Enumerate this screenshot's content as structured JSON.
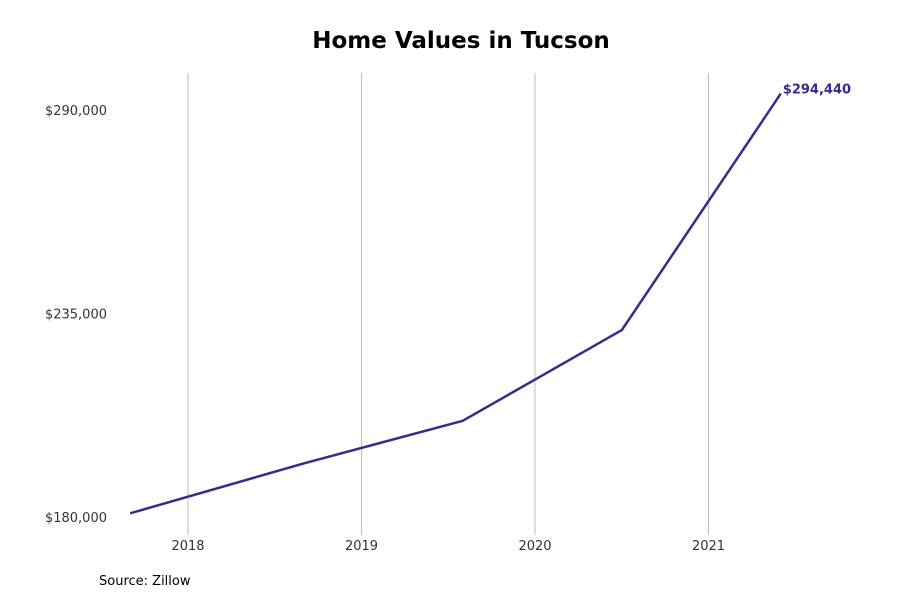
{
  "chart_data": {
    "type": "line",
    "title": "Home Values in Tucson",
    "xlabel": "",
    "ylabel": "",
    "x_ticks": [
      "2018",
      "2019",
      "2020",
      "2021"
    ],
    "y_ticks": [
      "$180,000",
      "$235,000",
      "$290,000"
    ],
    "ylim": [
      180000,
      290000
    ],
    "grid": "vertical",
    "series": [
      {
        "color": "#332e8c",
        "x": [
          "2017-09",
          "2018-09",
          "2019-08",
          "2020-07",
          "2021-06"
        ],
        "values": [
          181000,
          194500,
          206000,
          230500,
          294440
        ],
        "end_label": "$294,440"
      }
    ]
  },
  "source": "Source: Zillow"
}
